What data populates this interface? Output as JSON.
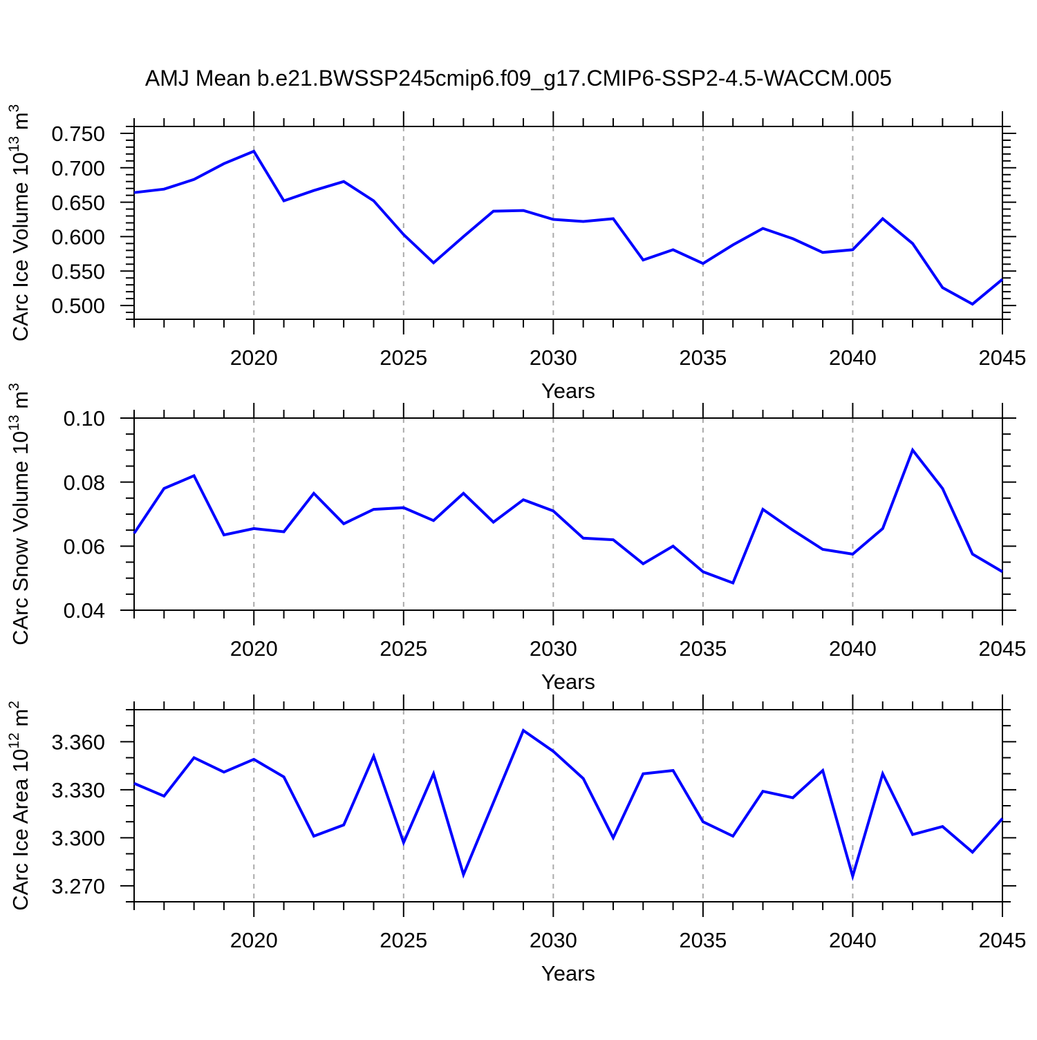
{
  "title": "AMJ Mean b.e21.BWSSP245cmip6.f09_g17.CMIP6-SSP2-4.5-WACCM.005",
  "colors": {
    "line": "#0000ff",
    "grid": "#aaaaaa",
    "axis": "#000000"
  },
  "x_axis": {
    "label": "Years",
    "range": [
      2016,
      2045
    ],
    "major_ticks": [
      2020,
      2025,
      2030,
      2035,
      2040,
      2045
    ],
    "major_tick_labels": [
      "2020",
      "2025",
      "2030",
      "2035",
      "2040",
      "2045"
    ],
    "minor_tick_step": 1,
    "grid_years": [
      2020,
      2025,
      2030,
      2035,
      2040
    ]
  },
  "chart_data": [
    {
      "type": "line",
      "name": "ice-volume",
      "ylabel_parts": [
        {
          "text": "CArc Ice Volume 10",
          "sup": false
        },
        {
          "text": "13",
          "sup": true
        },
        {
          "text": " m",
          "sup": false
        },
        {
          "text": "3",
          "sup": true
        }
      ],
      "ylim": [
        0.48,
        0.76
      ],
      "yticks": [
        0.5,
        0.55,
        0.6,
        0.65,
        0.7,
        0.75
      ],
      "ytick_labels": [
        "0.500",
        "0.550",
        "0.600",
        "0.650",
        "0.700",
        "0.750"
      ],
      "minor_step": 0.01,
      "x": [
        2016,
        2017,
        2018,
        2019,
        2020,
        2021,
        2022,
        2023,
        2024,
        2025,
        2026,
        2027,
        2028,
        2029,
        2030,
        2031,
        2032,
        2033,
        2034,
        2035,
        2036,
        2037,
        2038,
        2039,
        2040,
        2041,
        2042,
        2043,
        2044,
        2045
      ],
      "values": [
        0.664,
        0.669,
        0.683,
        0.706,
        0.724,
        0.652,
        0.667,
        0.68,
        0.652,
        0.603,
        0.562,
        0.6,
        0.637,
        0.638,
        0.625,
        0.622,
        0.626,
        0.566,
        0.581,
        0.561,
        0.588,
        0.612,
        0.597,
        0.577,
        0.581,
        0.626,
        0.59,
        0.526,
        0.502,
        0.538
      ]
    },
    {
      "type": "line",
      "name": "snow-volume",
      "ylabel_parts": [
        {
          "text": "CArc Snow Volume 10",
          "sup": false
        },
        {
          "text": "13",
          "sup": true
        },
        {
          "text": " m",
          "sup": false
        },
        {
          "text": "3",
          "sup": true
        }
      ],
      "ylim": [
        0.04,
        0.1
      ],
      "yticks": [
        0.04,
        0.06,
        0.08,
        0.1
      ],
      "ytick_labels": [
        "0.04",
        "0.06",
        "0.08",
        "0.10"
      ],
      "minor_step": 0.005,
      "x": [
        2016,
        2017,
        2018,
        2019,
        2020,
        2021,
        2022,
        2023,
        2024,
        2025,
        2026,
        2027,
        2028,
        2029,
        2030,
        2031,
        2032,
        2033,
        2034,
        2035,
        2036,
        2037,
        2038,
        2039,
        2040,
        2041,
        2042,
        2043,
        2044,
        2045
      ],
      "values": [
        0.064,
        0.078,
        0.082,
        0.0635,
        0.0655,
        0.0645,
        0.0765,
        0.067,
        0.0715,
        0.072,
        0.068,
        0.0765,
        0.0675,
        0.0745,
        0.071,
        0.0625,
        0.062,
        0.0545,
        0.06,
        0.052,
        0.0485,
        0.0715,
        0.065,
        0.059,
        0.0575,
        0.0655,
        0.09,
        0.078,
        0.0575,
        0.052
      ]
    },
    {
      "type": "line",
      "name": "ice-area",
      "ylabel_parts": [
        {
          "text": "CArc Ice Area 10",
          "sup": false
        },
        {
          "text": "12",
          "sup": true
        },
        {
          "text": " m",
          "sup": false
        },
        {
          "text": "2",
          "sup": true
        }
      ],
      "ylim": [
        3.26,
        3.38
      ],
      "yticks": [
        3.27,
        3.3,
        3.33,
        3.36
      ],
      "ytick_labels": [
        "3.270",
        "3.300",
        "3.330",
        "3.360"
      ],
      "minor_step": 0.01,
      "x": [
        2016,
        2017,
        2018,
        2019,
        2020,
        2021,
        2022,
        2023,
        2024,
        2025,
        2026,
        2027,
        2028,
        2029,
        2030,
        2031,
        2032,
        2033,
        2034,
        2035,
        2036,
        2037,
        2038,
        2039,
        2040,
        2041,
        2042,
        2043,
        2044,
        2045
      ],
      "values": [
        3.334,
        3.326,
        3.35,
        3.341,
        3.349,
        3.338,
        3.301,
        3.308,
        3.351,
        3.297,
        3.34,
        3.277,
        3.322,
        3.367,
        3.354,
        3.337,
        3.3,
        3.34,
        3.342,
        3.31,
        3.301,
        3.329,
        3.325,
        3.342,
        3.276,
        3.34,
        3.302,
        3.307,
        3.291,
        3.312
      ]
    }
  ]
}
